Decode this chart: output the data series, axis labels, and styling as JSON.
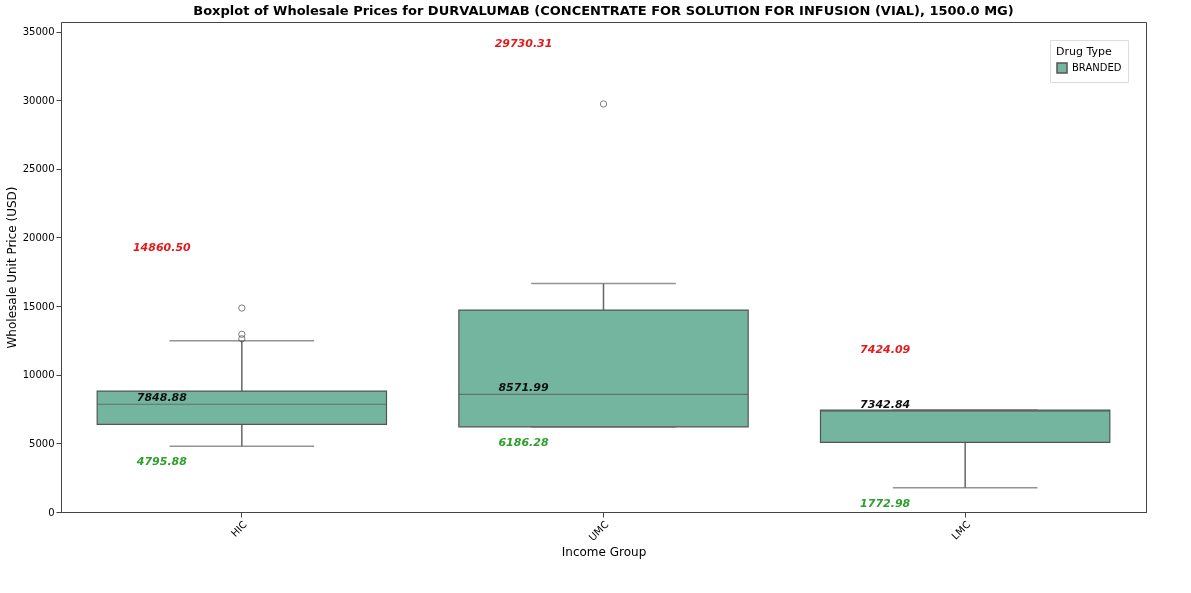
{
  "chart_data": {
    "type": "box",
    "title": "Boxplot of Wholesale Prices for DURVALUMAB (CONCENTRATE FOR SOLUTION FOR INFUSION (VIAL), 1500.0 MG)",
    "xlabel": "Income Group",
    "ylabel": "Wholesale Unit Price (USD)",
    "legend_title": "Drug Type",
    "legend": "top right",
    "grid": false,
    "categories": [
      "HIC",
      "UMC",
      "LMC"
    ],
    "series": [
      {
        "name": "BRANDED",
        "color": "#73b59f",
        "boxes": [
          {
            "low": 4795.88,
            "q1": 6380,
            "median": 7848.88,
            "q3": 8810,
            "high": 12480,
            "outliers": [
              12620,
              12950,
              14860.5
            ]
          },
          {
            "low": 6186.28,
            "q1": 6200,
            "median": 8571.99,
            "q3": 14710,
            "high": 16640,
            "outliers": [
              29730.31
            ]
          },
          {
            "low": 1772.98,
            "q1": 5070,
            "median": 7342.84,
            "q3": 7424.09,
            "high": 7424.09
          }
        ]
      }
    ],
    "ylim": [
      0,
      35700
    ],
    "yticks": [
      0,
      5000,
      10000,
      15000,
      20000,
      25000,
      30000,
      35000
    ],
    "annotations": [
      "14860.50",
      "7848.88",
      "4795.88",
      "29730.31",
      "8571.99",
      "6186.28",
      "7424.09",
      "7342.84",
      "1772.98"
    ]
  }
}
